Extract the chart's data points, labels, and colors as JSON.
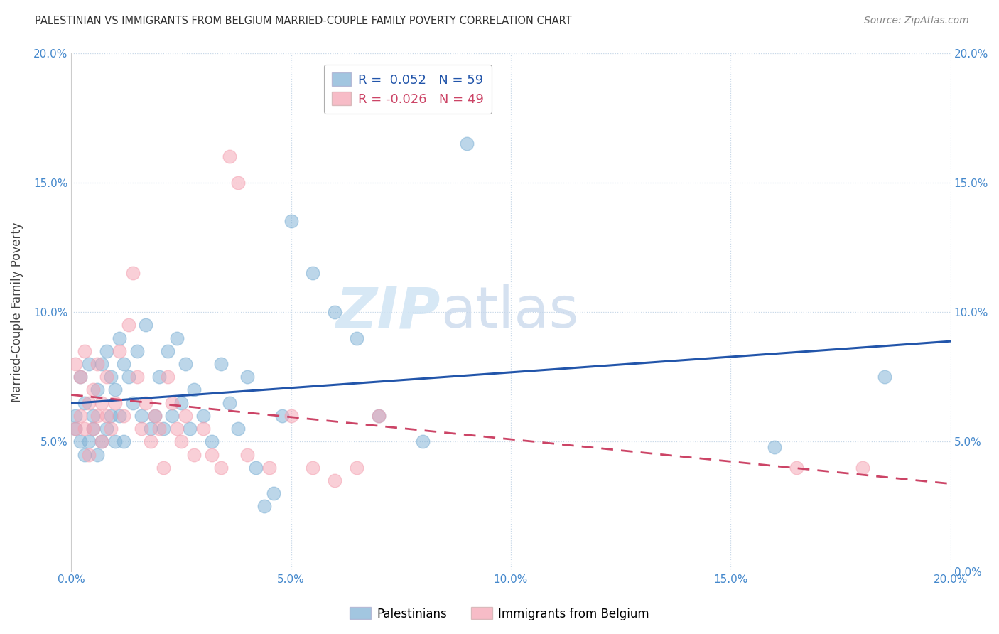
{
  "title": "PALESTINIAN VS IMMIGRANTS FROM BELGIUM MARRIED-COUPLE FAMILY POVERTY CORRELATION CHART",
  "source": "Source: ZipAtlas.com",
  "ylabel": "Married-Couple Family Poverty",
  "xlim": [
    0,
    0.2
  ],
  "ylim": [
    0,
    0.2
  ],
  "xticks": [
    0.0,
    0.05,
    0.1,
    0.15,
    0.2
  ],
  "yticks": [
    0.0,
    0.05,
    0.1,
    0.15,
    0.2
  ],
  "xtick_labels": [
    "0.0%",
    "5.0%",
    "10.0%",
    "15.0%",
    "20.0%"
  ],
  "ytick_labels": [
    "0.0%",
    "5.0%",
    "10.0%",
    "15.0%",
    "20.0%"
  ],
  "blue_color": "#7BAFD4",
  "pink_color": "#F4A0B0",
  "blue_line_color": "#2255AA",
  "pink_line_color": "#CC4466",
  "legend_blue_R": " 0.052",
  "legend_blue_N": "59",
  "legend_pink_R": "-0.026",
  "legend_pink_N": "49",
  "legend_label_blue": "Palestinians",
  "legend_label_pink": "Immigrants from Belgium",
  "watermark_zip": "ZIP",
  "watermark_atlas": "atlas",
  "blue_x": [
    0.001,
    0.001,
    0.002,
    0.002,
    0.003,
    0.003,
    0.004,
    0.004,
    0.005,
    0.005,
    0.006,
    0.006,
    0.007,
    0.007,
    0.008,
    0.008,
    0.009,
    0.009,
    0.01,
    0.01,
    0.011,
    0.011,
    0.012,
    0.012,
    0.013,
    0.014,
    0.015,
    0.016,
    0.017,
    0.018,
    0.019,
    0.02,
    0.021,
    0.022,
    0.023,
    0.024,
    0.025,
    0.026,
    0.027,
    0.028,
    0.03,
    0.032,
    0.034,
    0.036,
    0.038,
    0.04,
    0.042,
    0.044,
    0.046,
    0.048,
    0.05,
    0.055,
    0.06,
    0.065,
    0.07,
    0.08,
    0.09,
    0.16,
    0.185
  ],
  "blue_y": [
    0.06,
    0.055,
    0.075,
    0.05,
    0.065,
    0.045,
    0.08,
    0.05,
    0.06,
    0.055,
    0.07,
    0.045,
    0.08,
    0.05,
    0.085,
    0.055,
    0.075,
    0.06,
    0.07,
    0.05,
    0.09,
    0.06,
    0.08,
    0.05,
    0.075,
    0.065,
    0.085,
    0.06,
    0.095,
    0.055,
    0.06,
    0.075,
    0.055,
    0.085,
    0.06,
    0.09,
    0.065,
    0.08,
    0.055,
    0.07,
    0.06,
    0.05,
    0.08,
    0.065,
    0.055,
    0.075,
    0.04,
    0.025,
    0.03,
    0.06,
    0.135,
    0.115,
    0.1,
    0.09,
    0.06,
    0.05,
    0.165,
    0.048,
    0.075
  ],
  "pink_x": [
    0.001,
    0.001,
    0.002,
    0.002,
    0.003,
    0.003,
    0.004,
    0.004,
    0.005,
    0.005,
    0.006,
    0.006,
    0.007,
    0.007,
    0.008,
    0.008,
    0.009,
    0.01,
    0.011,
    0.012,
    0.013,
    0.014,
    0.015,
    0.016,
    0.017,
    0.018,
    0.019,
    0.02,
    0.021,
    0.022,
    0.023,
    0.024,
    0.025,
    0.026,
    0.028,
    0.03,
    0.032,
    0.034,
    0.036,
    0.038,
    0.04,
    0.045,
    0.05,
    0.055,
    0.06,
    0.065,
    0.07,
    0.165,
    0.18
  ],
  "pink_y": [
    0.08,
    0.055,
    0.06,
    0.075,
    0.085,
    0.055,
    0.065,
    0.045,
    0.07,
    0.055,
    0.06,
    0.08,
    0.05,
    0.065,
    0.06,
    0.075,
    0.055,
    0.065,
    0.085,
    0.06,
    0.095,
    0.115,
    0.075,
    0.055,
    0.065,
    0.05,
    0.06,
    0.055,
    0.04,
    0.075,
    0.065,
    0.055,
    0.05,
    0.06,
    0.045,
    0.055,
    0.045,
    0.04,
    0.16,
    0.15,
    0.045,
    0.04,
    0.06,
    0.04,
    0.035,
    0.04,
    0.06,
    0.04,
    0.04
  ],
  "background_color": "#FFFFFF",
  "grid_color": "#C8D8E8",
  "title_color": "#333333",
  "tick_color": "#4488CC"
}
